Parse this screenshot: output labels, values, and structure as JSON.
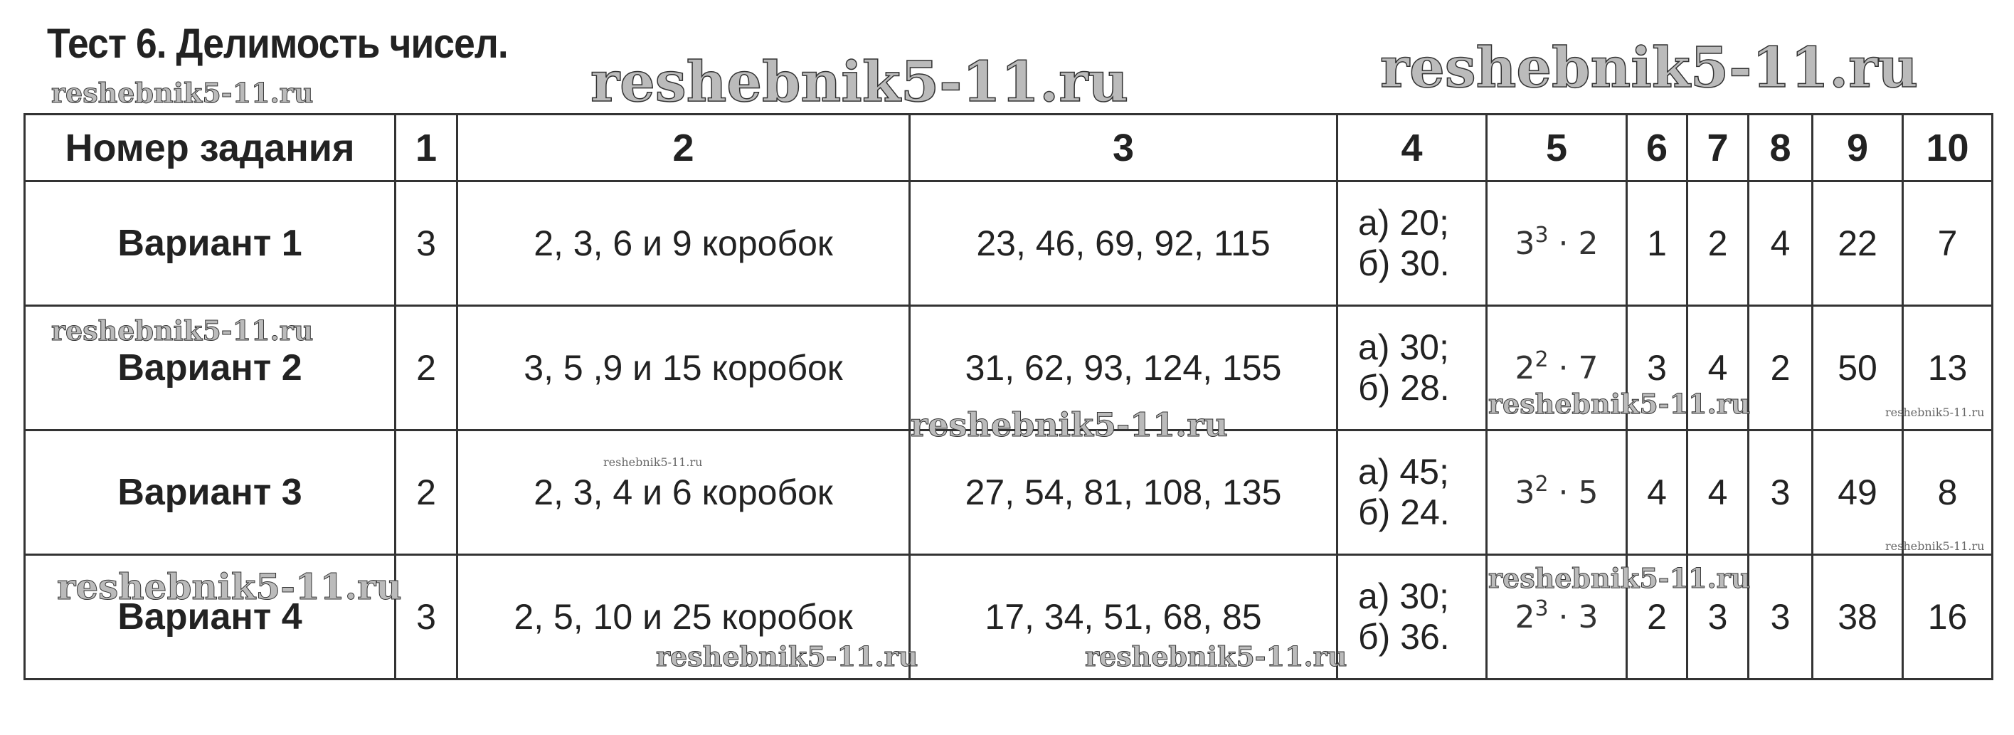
{
  "title": "Тест 6. Делимость чисел.",
  "watermark": "reshebnik5-11.ru",
  "table": {
    "headers": [
      "Номер задания",
      "1",
      "2",
      "3",
      "4",
      "5",
      "6",
      "7",
      "8",
      "9",
      "10"
    ],
    "rows": [
      {
        "variant": "Вариант 1",
        "c1": "3",
        "c2": "2, 3, 6 и 9 коробок",
        "c3": "23, 46, 69, 92, 115",
        "c4a": "а) 20;",
        "c4b": "б) 30.",
        "c5base": "3",
        "c5exp": "3",
        "c5rest": " · 2",
        "c6": "1",
        "c7": "2",
        "c8": "4",
        "c9": "22",
        "c10": "7"
      },
      {
        "variant": "Вариант 2",
        "c1": "2",
        "c2": "3, 5 ,9 и 15 коробок",
        "c3": "31, 62, 93, 124, 155",
        "c4a": "а) 30;",
        "c4b": "б) 28.",
        "c5base": "2",
        "c5exp": "2",
        "c5rest": " · 7",
        "c6": "3",
        "c7": "4",
        "c8": "2",
        "c9": "50",
        "c10": "13"
      },
      {
        "variant": "Вариант 3",
        "c1": "2",
        "c2": "2, 3, 4 и 6 коробок",
        "c3": "27, 54, 81, 108, 135",
        "c4a": "а) 45;",
        "c4b": "б) 24.",
        "c5base": "3",
        "c5exp": "2",
        "c5rest": " · 5",
        "c6": "4",
        "c7": "4",
        "c8": "3",
        "c9": "49",
        "c10": "8"
      },
      {
        "variant": "Вариант 4",
        "c1": "3",
        "c2": "2, 5, 10 и 25 коробок",
        "c3": "17, 34, 51, 68, 85",
        "c4a": "а) 30;",
        "c4b": "б) 36.",
        "c5base": "2",
        "c5exp": "3",
        "c5rest": " · 3",
        "c6": "2",
        "c7": "3",
        "c8": "3",
        "c9": "38",
        "c10": "16"
      }
    ]
  }
}
